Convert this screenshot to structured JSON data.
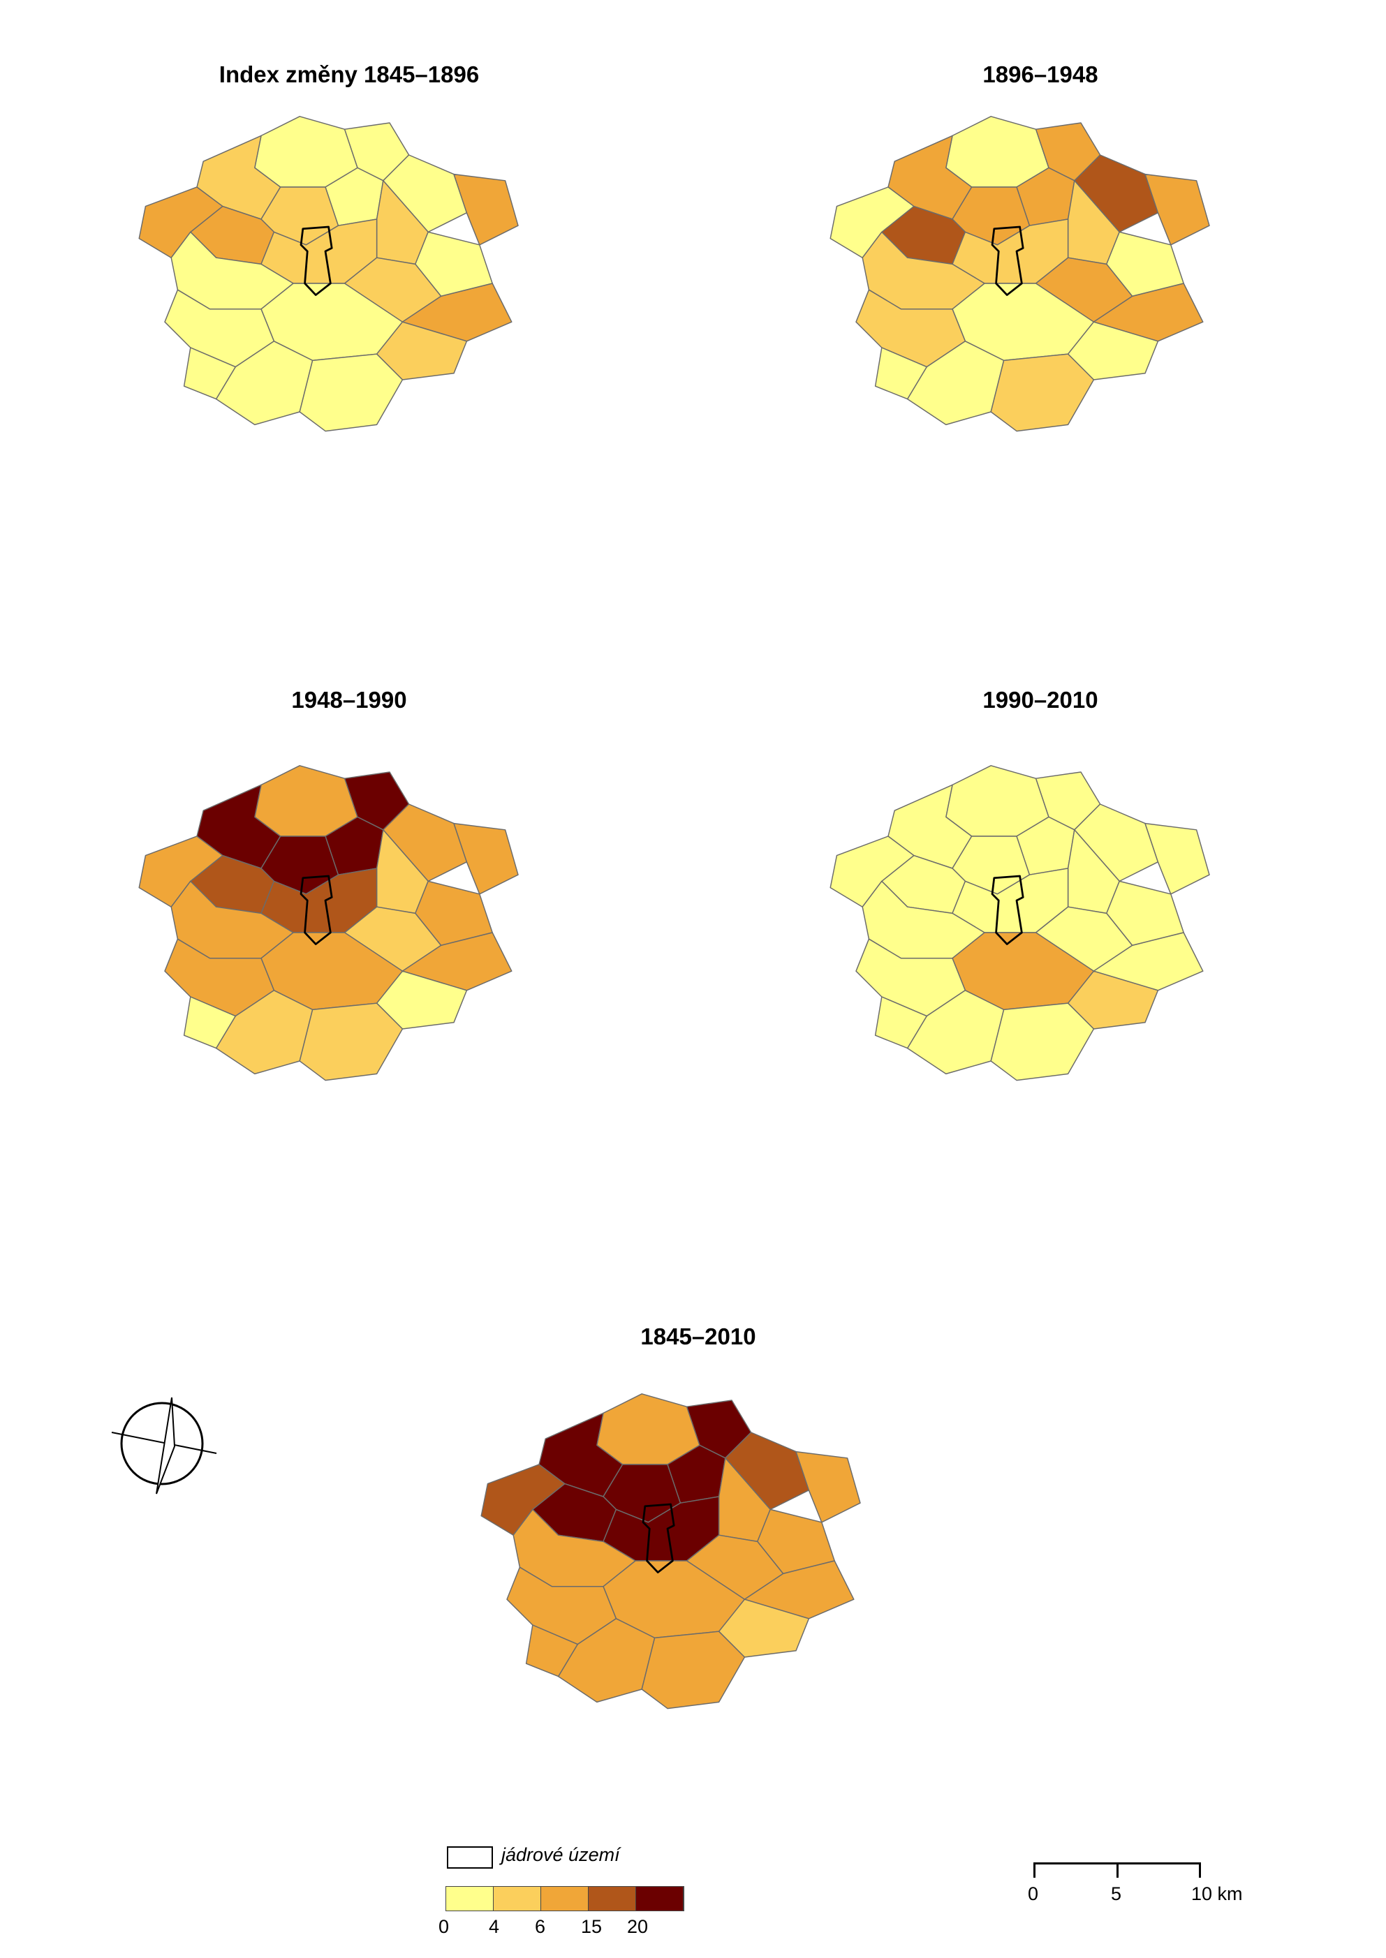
{
  "colors": {
    "c1": "#ffff8c",
    "c2": "#fbcf5c",
    "c3": "#f0a638",
    "c4": "#b0561a",
    "c5": "#6b0000",
    "border": "#6b6b6b"
  },
  "maps": [
    {
      "title": "Index změny 1845–1896",
      "classes": [
        1,
        2,
        1,
        1,
        2,
        3,
        1,
        2,
        3,
        3,
        2,
        1,
        1,
        2,
        3,
        1,
        1,
        2,
        1,
        1,
        1
      ]
    },
    {
      "title": "1896–1948",
      "classes": [
        1,
        3,
        3,
        3,
        3,
        4,
        4,
        2,
        3,
        1,
        2,
        1,
        2,
        3,
        3,
        1,
        2,
        1,
        1,
        2,
        1
      ]
    },
    {
      "title": "1948–1990",
      "classes": [
        3,
        5,
        5,
        5,
        5,
        4,
        3,
        2,
        3,
        3,
        4,
        3,
        3,
        2,
        3,
        3,
        3,
        1,
        2,
        2,
        1
      ]
    },
    {
      "title": "1990–2010",
      "classes": [
        1,
        1,
        1,
        1,
        1,
        1,
        1,
        1,
        1,
        1,
        1,
        1,
        1,
        1,
        1,
        3,
        1,
        2,
        1,
        1,
        1
      ]
    },
    {
      "title": "1845–2010",
      "classes": [
        3,
        5,
        5,
        5,
        5,
        5,
        4,
        3,
        3,
        4,
        5,
        3,
        3,
        3,
        3,
        3,
        3,
        2,
        3,
        3,
        3
      ]
    }
  ],
  "legend": {
    "core_label": "jádrové území",
    "breaks": [
      "0",
      "4",
      "6",
      "15",
      "20"
    ]
  },
  "scale": {
    "labels": [
      "0",
      "5",
      "10 km"
    ]
  },
  "north_arrow": "north-arrow-icon"
}
